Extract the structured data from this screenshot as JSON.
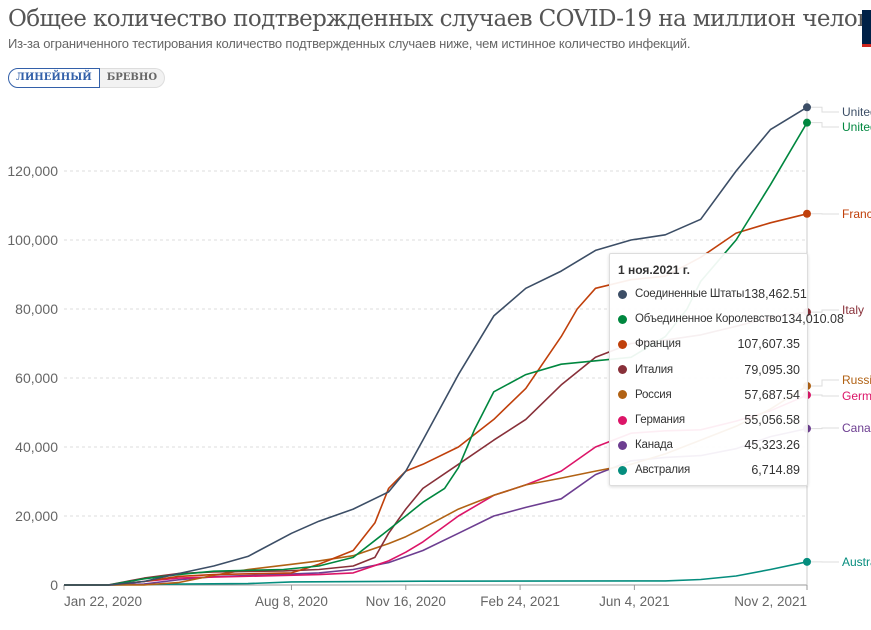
{
  "header": {
    "title": "Общее количество подтвержденных случаев COVID-19 на миллион человек",
    "subtitle": "Из-за ограниченного тестирования количество подтвержденных случаев ниже, чем истинное количество инфекций."
  },
  "toggle": {
    "linear": "ЛИНЕЙНЫЙ",
    "log": "БРЕВНО",
    "selected": "linear"
  },
  "tooltip": {
    "date": "1 ноя.2021 г.",
    "rows": [
      {
        "name": "Соединенные Штаты",
        "value": "138,462.51",
        "color": "#3c4e66"
      },
      {
        "name": "Объединенное Королевство",
        "value": "134,010.08",
        "color": "#00847e"
      },
      {
        "name": "Франция",
        "value": "107,607.35",
        "color": "#c15065"
      },
      {
        "name": "Италия",
        "value": "79,095.30",
        "color": "#883039"
      },
      {
        "name": "Россия",
        "value": "57,687.54",
        "color": "#b16214"
      },
      {
        "name": "Германия",
        "value": "55,056.58",
        "color": "#dc1568"
      },
      {
        "name": "Канада",
        "value": "45,323.26",
        "color": "#6d3e91"
      },
      {
        "name": "Австралия",
        "value": "6,714.89",
        "color": "#058d7e"
      }
    ]
  },
  "chart_data": {
    "type": "line",
    "title": "Общее количество подтвержденных случаев COVID-19 на миллион человек",
    "xlabel": "",
    "ylabel": "",
    "xlim": [
      "2020-01-22",
      "2021-11-02"
    ],
    "ylim": [
      0,
      140000
    ],
    "yticks": [
      0,
      20000,
      40000,
      60000,
      80000,
      100000,
      120000
    ],
    "ytick_labels": [
      "0",
      "20,000",
      "40,000",
      "60,000",
      "80,000",
      "100,000",
      "120,000"
    ],
    "xticks": [
      "2020-01-22",
      "2020-08-08",
      "2020-11-16",
      "2021-02-24",
      "2021-06-04",
      "2021-11-02"
    ],
    "xtick_labels": [
      "Jan 22, 2020",
      "Aug 8, 2020",
      "Nov 16, 2020",
      "Feb 24, 2021",
      "Jun 4, 2021",
      "Nov 2, 2021"
    ],
    "grid": "horizontal dashed",
    "hover_date": "2021-11-02",
    "series": [
      {
        "name": "United States",
        "color": "#3c4e66",
        "points": [
          [
            "2020-01-22",
            0
          ],
          [
            "2020-03-01",
            0
          ],
          [
            "2020-04-01",
            1000
          ],
          [
            "2020-05-01",
            3300
          ],
          [
            "2020-06-01",
            5500
          ],
          [
            "2020-07-01",
            8300
          ],
          [
            "2020-08-08",
            15000
          ],
          [
            "2020-09-01",
            18500
          ],
          [
            "2020-10-01",
            22000
          ],
          [
            "2020-11-01",
            27000
          ],
          [
            "2020-11-16",
            33000
          ],
          [
            "2020-12-01",
            42000
          ],
          [
            "2021-01-01",
            61000
          ],
          [
            "2021-02-01",
            78000
          ],
          [
            "2021-03-01",
            86000
          ],
          [
            "2021-04-01",
            91000
          ],
          [
            "2021-05-01",
            97000
          ],
          [
            "2021-06-01",
            100000
          ],
          [
            "2021-07-01",
            101500
          ],
          [
            "2021-08-01",
            106000
          ],
          [
            "2021-09-01",
            120000
          ],
          [
            "2021-10-01",
            132000
          ],
          [
            "2021-11-02",
            138462.51
          ]
        ]
      },
      {
        "name": "United Kingdom",
        "color": "#00873f",
        "points": [
          [
            "2020-01-22",
            0
          ],
          [
            "2020-03-01",
            0
          ],
          [
            "2020-04-01",
            1800
          ],
          [
            "2020-05-01",
            3000
          ],
          [
            "2020-06-01",
            4000
          ],
          [
            "2020-08-01",
            4500
          ],
          [
            "2020-09-01",
            5500
          ],
          [
            "2020-10-01",
            8000
          ],
          [
            "2020-11-01",
            16000
          ],
          [
            "2020-11-16",
            20000
          ],
          [
            "2020-12-01",
            24000
          ],
          [
            "2020-12-20",
            28000
          ],
          [
            "2021-01-01",
            34000
          ],
          [
            "2021-01-15",
            45000
          ],
          [
            "2021-02-01",
            56000
          ],
          [
            "2021-03-01",
            61000
          ],
          [
            "2021-04-01",
            64000
          ],
          [
            "2021-05-01",
            65000
          ],
          [
            "2021-06-01",
            66000
          ],
          [
            "2021-07-01",
            72000
          ],
          [
            "2021-07-20",
            80000
          ],
          [
            "2021-08-01",
            88000
          ],
          [
            "2021-09-01",
            100000
          ],
          [
            "2021-10-01",
            116000
          ],
          [
            "2021-11-02",
            134010.08
          ]
        ]
      },
      {
        "name": "France",
        "color": "#c0400b",
        "points": [
          [
            "2020-01-22",
            0
          ],
          [
            "2020-03-01",
            0
          ],
          [
            "2020-04-01",
            1000
          ],
          [
            "2020-05-01",
            2500
          ],
          [
            "2020-06-01",
            3000
          ],
          [
            "2020-08-08",
            3500
          ],
          [
            "2020-09-01",
            6000
          ],
          [
            "2020-10-01",
            10000
          ],
          [
            "2020-10-20",
            18000
          ],
          [
            "2020-11-01",
            28000
          ],
          [
            "2020-11-16",
            33000
          ],
          [
            "2020-12-01",
            35000
          ],
          [
            "2021-01-01",
            40000
          ],
          [
            "2021-02-01",
            48000
          ],
          [
            "2021-03-01",
            57000
          ],
          [
            "2021-04-01",
            72000
          ],
          [
            "2021-04-15",
            80000
          ],
          [
            "2021-05-01",
            86000
          ],
          [
            "2021-06-01",
            88500
          ],
          [
            "2021-07-01",
            89500
          ],
          [
            "2021-08-01",
            95000
          ],
          [
            "2021-09-01",
            102000
          ],
          [
            "2021-10-01",
            105000
          ],
          [
            "2021-11-02",
            107607.35
          ]
        ]
      },
      {
        "name": "Italy",
        "color": "#883039",
        "points": [
          [
            "2020-01-22",
            0
          ],
          [
            "2020-03-01",
            30
          ],
          [
            "2020-04-01",
            2000
          ],
          [
            "2020-05-01",
            3300
          ],
          [
            "2020-06-01",
            3800
          ],
          [
            "2020-08-01",
            4100
          ],
          [
            "2020-09-01",
            4500
          ],
          [
            "2020-10-01",
            5500
          ],
          [
            "2020-10-20",
            8000
          ],
          [
            "2020-11-01",
            15000
          ],
          [
            "2020-11-16",
            22000
          ],
          [
            "2020-12-01",
            28000
          ],
          [
            "2021-01-01",
            35000
          ],
          [
            "2021-02-01",
            42000
          ],
          [
            "2021-03-01",
            48000
          ],
          [
            "2021-04-01",
            58000
          ],
          [
            "2021-05-01",
            66000
          ],
          [
            "2021-06-01",
            70000
          ],
          [
            "2021-07-01",
            71000
          ],
          [
            "2021-08-01",
            72500
          ],
          [
            "2021-09-01",
            75000
          ],
          [
            "2021-10-01",
            77500
          ],
          [
            "2021-11-02",
            79095.3
          ]
        ]
      },
      {
        "name": "Russia",
        "color": "#b16214",
        "points": [
          [
            "2020-01-22",
            0
          ],
          [
            "2020-04-01",
            30
          ],
          [
            "2020-05-01",
            700
          ],
          [
            "2020-06-01",
            2800
          ],
          [
            "2020-07-01",
            4500
          ],
          [
            "2020-08-08",
            6000
          ],
          [
            "2020-09-01",
            7000
          ],
          [
            "2020-10-01",
            8500
          ],
          [
            "2020-11-01",
            12000
          ],
          [
            "2020-11-16",
            14000
          ],
          [
            "2020-12-01",
            16500
          ],
          [
            "2021-01-01",
            22000
          ],
          [
            "2021-02-01",
            26000
          ],
          [
            "2021-03-01",
            29000
          ],
          [
            "2021-04-01",
            31000
          ],
          [
            "2021-05-01",
            33000
          ],
          [
            "2021-06-01",
            35000
          ],
          [
            "2021-07-01",
            38000
          ],
          [
            "2021-08-01",
            42000
          ],
          [
            "2021-09-01",
            46000
          ],
          [
            "2021-10-01",
            51000
          ],
          [
            "2021-11-02",
            57687.54
          ]
        ]
      },
      {
        "name": "Germany",
        "color": "#dc1568",
        "points": [
          [
            "2020-01-22",
            0
          ],
          [
            "2020-03-01",
            2
          ],
          [
            "2020-04-01",
            1000
          ],
          [
            "2020-05-01",
            2000
          ],
          [
            "2020-06-01",
            2300
          ],
          [
            "2020-09-01",
            3000
          ],
          [
            "2020-10-01",
            3500
          ],
          [
            "2020-11-01",
            7000
          ],
          [
            "2020-11-16",
            9500
          ],
          [
            "2020-12-01",
            12500
          ],
          [
            "2021-01-01",
            20000
          ],
          [
            "2021-02-01",
            26000
          ],
          [
            "2021-03-01",
            29000
          ],
          [
            "2021-04-01",
            33000
          ],
          [
            "2021-05-01",
            40000
          ],
          [
            "2021-06-01",
            44000
          ],
          [
            "2021-07-01",
            44700
          ],
          [
            "2021-08-01",
            45000
          ],
          [
            "2021-09-01",
            47500
          ],
          [
            "2021-10-01",
            50500
          ],
          [
            "2021-11-02",
            55056.58
          ]
        ]
      },
      {
        "name": "Canada",
        "color": "#6d3e91",
        "points": [
          [
            "2020-01-22",
            0
          ],
          [
            "2020-03-01",
            0
          ],
          [
            "2020-04-01",
            300
          ],
          [
            "2020-05-01",
            1500
          ],
          [
            "2020-06-01",
            2400
          ],
          [
            "2020-08-01",
            3100
          ],
          [
            "2020-09-01",
            3500
          ],
          [
            "2020-10-01",
            4500
          ],
          [
            "2020-11-01",
            6500
          ],
          [
            "2020-12-01",
            10000
          ],
          [
            "2021-01-01",
            15000
          ],
          [
            "2021-02-01",
            20000
          ],
          [
            "2021-03-01",
            22500
          ],
          [
            "2021-04-01",
            25000
          ],
          [
            "2021-05-01",
            32000
          ],
          [
            "2021-06-01",
            36000
          ],
          [
            "2021-07-01",
            37000
          ],
          [
            "2021-08-01",
            37500
          ],
          [
            "2021-09-01",
            39500
          ],
          [
            "2021-10-01",
            43000
          ],
          [
            "2021-11-02",
            45323.26
          ]
        ]
      },
      {
        "name": "Australia",
        "color": "#058d7e",
        "points": [
          [
            "2020-01-22",
            0
          ],
          [
            "2020-03-01",
            0
          ],
          [
            "2020-04-01",
            150
          ],
          [
            "2020-05-01",
            270
          ],
          [
            "2020-07-01",
            400
          ],
          [
            "2020-08-08",
            900
          ],
          [
            "2020-12-01",
            1100
          ],
          [
            "2021-06-01",
            1180
          ],
          [
            "2021-07-01",
            1200
          ],
          [
            "2021-08-01",
            1600
          ],
          [
            "2021-09-01",
            2600
          ],
          [
            "2021-10-01",
            4500
          ],
          [
            "2021-11-02",
            6714.89
          ]
        ]
      }
    ],
    "end_labels": [
      "United States",
      "United Kingdom",
      "France",
      "Italy",
      "Russia",
      "Germany",
      "Canada",
      "Australia"
    ]
  }
}
